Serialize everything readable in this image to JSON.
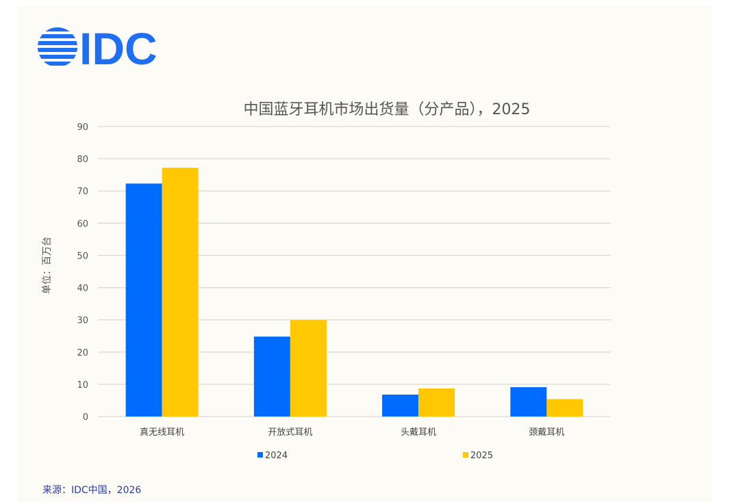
{
  "logo_text": "IDC",
  "source": "来源：IDC中国，2026",
  "colors": {
    "2024": "#006cff",
    "2025": "#ffc800",
    "logo": "#1f6ff2"
  },
  "chart_data": {
    "type": "bar",
    "title": "中国蓝牙耳机市场出货量（分产品），2025",
    "ylabel": "单位：百万台",
    "xlabel": "",
    "categories": [
      "真无线耳机",
      "开放式耳机",
      "头戴耳机",
      "颈戴耳机"
    ],
    "series": [
      {
        "name": "2024",
        "values": [
          72.3,
          24.8,
          6.8,
          9.1
        ]
      },
      {
        "name": "2025",
        "values": [
          77.2,
          29.9,
          8.7,
          5.4
        ]
      }
    ],
    "ylim": [
      0,
      90
    ],
    "yticks": [
      0,
      10,
      20,
      30,
      40,
      50,
      60,
      70,
      80,
      90
    ],
    "grid": true,
    "legend_placement": "bottom"
  }
}
